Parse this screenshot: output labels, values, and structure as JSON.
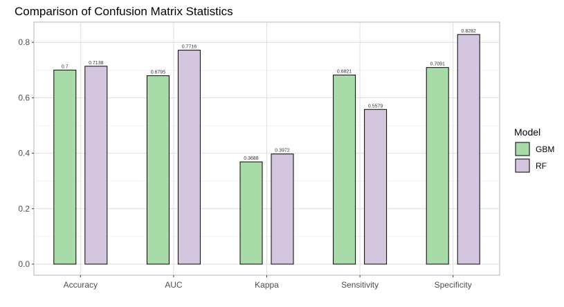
{
  "chart_data": {
    "type": "bar",
    "title": "Comparison of Confusion Matrix Statistics",
    "xlabel": "",
    "ylabel": "",
    "categories": [
      "Accuracy",
      "AUC",
      "Kappa",
      "Sensitivity",
      "Specificity"
    ],
    "series": [
      {
        "name": "GBM",
        "color": "#a8dba8",
        "values": [
          0.7,
          0.6795,
          0.3688,
          0.6821,
          0.7091
        ],
        "labels": [
          "0.7",
          "0.6795",
          "0.3688",
          "0.6821",
          "0.7091"
        ]
      },
      {
        "name": "RF",
        "color": "#d5c6e0",
        "values": [
          0.7138,
          0.7716,
          0.3972,
          0.5579,
          0.8282
        ],
        "labels": [
          "0.7138",
          "0.7716",
          "0.3972",
          "0.5579",
          "0.8282"
        ]
      }
    ],
    "ylim": [
      -0.035,
      0.87
    ],
    "yticks": [
      0.0,
      0.2,
      0.4,
      0.6,
      0.8
    ],
    "ytick_labels": [
      "0.0",
      "0.2",
      "0.4",
      "0.6",
      "0.8"
    ],
    "grid": true,
    "legend": {
      "title": "Model",
      "position": "right"
    }
  }
}
